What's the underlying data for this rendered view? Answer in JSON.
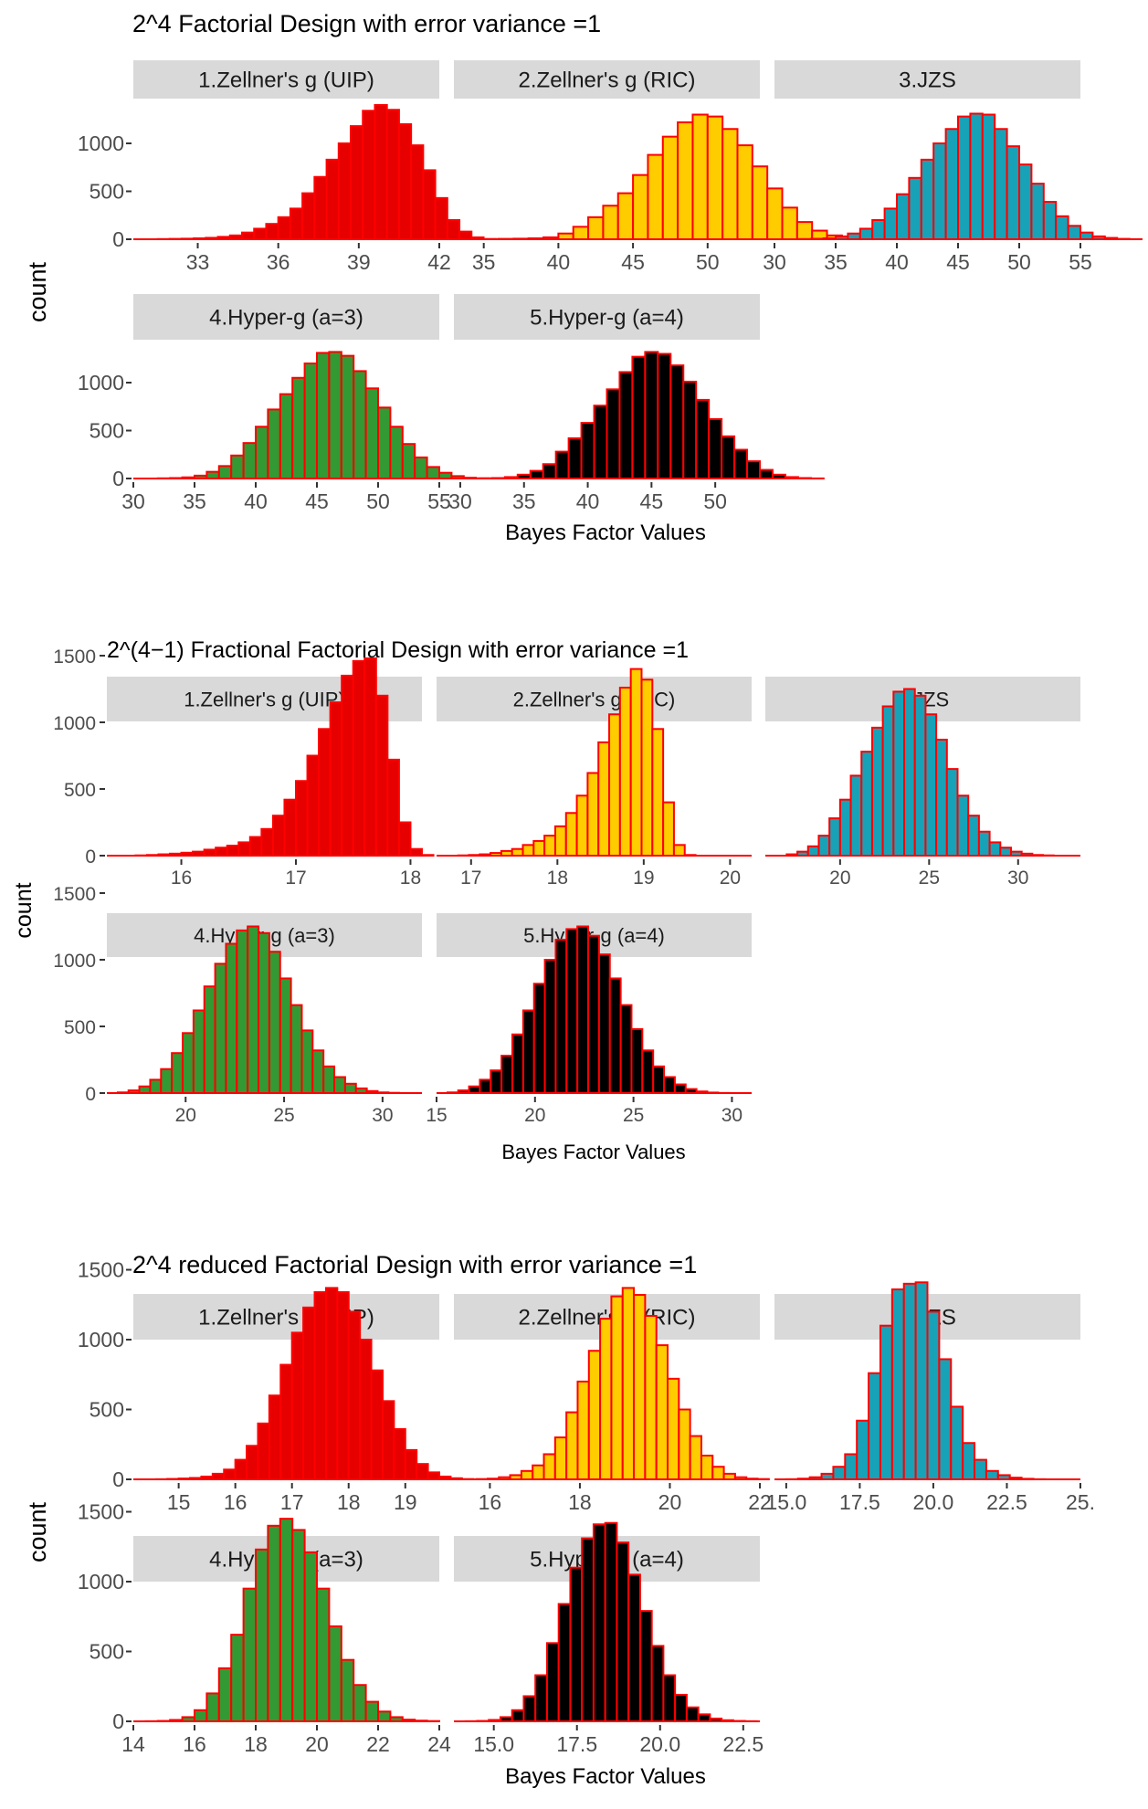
{
  "strip_color": "#d9d9d9",
  "bar_stroke": "#ff0000",
  "axis_color": "#333333",
  "text_color": "#4d4d4d",
  "figures": [
    {
      "title": "2^4 Factorial Design with error variance =1",
      "ylabel": "count",
      "xlabel": "Bayes Factor Values",
      "yticks": [
        0,
        500,
        1000
      ],
      "panels": [
        {
          "strip": "1.Zellner's g (UIP)",
          "fill": "#e60000",
          "xlim": [
            30.6,
            42.0
          ],
          "xticks": [
            33,
            36,
            39,
            42
          ],
          "tick_labels": [
            "33",
            "36",
            "39",
            "42"
          ],
          "start": 30.6,
          "width": 0.45,
          "counts": [
            0,
            0,
            2,
            4,
            6,
            10,
            15,
            25,
            40,
            70,
            110,
            160,
            230,
            320,
            480,
            650,
            830,
            1000,
            1180,
            1340,
            1400,
            1350,
            1200,
            980,
            720,
            430,
            200,
            80,
            20,
            2
          ]
        },
        {
          "strip": "2.Zellner's g (RIC)",
          "fill": "#ffcc00",
          "xlim": [
            33.0,
            53.5
          ],
          "xticks": [
            35,
            40,
            45,
            50
          ],
          "tick_labels": [
            "35",
            "40",
            "45",
            "50"
          ],
          "start": 33.0,
          "width": 1.0,
          "counts": [
            0,
            0,
            2,
            4,
            6,
            10,
            20,
            60,
            130,
            230,
            350,
            480,
            670,
            880,
            1070,
            1220,
            1300,
            1280,
            1150,
            980,
            760,
            530,
            330,
            180,
            90,
            40,
            14,
            5,
            1,
            0
          ]
        },
        {
          "strip": "3.JZS",
          "fill": "#17a2b8",
          "xlim": [
            30.0,
            55.0
          ],
          "xticks": [
            30,
            35,
            40,
            45,
            50,
            55
          ],
          "tick_labels": [
            "30",
            "35",
            "40",
            "45",
            "50",
            "55"
          ],
          "start": 30.0,
          "width": 1.0,
          "counts": [
            0,
            0,
            2,
            5,
            10,
            30,
            60,
            110,
            200,
            320,
            470,
            640,
            830,
            1000,
            1150,
            1280,
            1310,
            1300,
            1150,
            970,
            780,
            580,
            390,
            240,
            140,
            70,
            30,
            14,
            4,
            1
          ]
        }
      ],
      "panels_row2": [
        {
          "strip": "4.Hyper-g (a=3)",
          "fill": "#339933",
          "xlim": [
            30.0,
            55.0
          ],
          "xticks": [
            30,
            35,
            40,
            45,
            50,
            55
          ],
          "tick_labels": [
            "30",
            "35",
            "40",
            "45",
            "50",
            "55"
          ],
          "start": 30.0,
          "width": 1.0,
          "counts": [
            0,
            0,
            2,
            5,
            12,
            30,
            70,
            130,
            240,
            370,
            540,
            720,
            880,
            1050,
            1200,
            1310,
            1320,
            1280,
            1120,
            940,
            740,
            540,
            360,
            220,
            120,
            60,
            25,
            8,
            2,
            1
          ]
        },
        {
          "strip": "5.Hyper-g (a=4)",
          "fill": "#000000",
          "xlim": [
            29.5,
            53.5
          ],
          "xticks": [
            30,
            35,
            40,
            45,
            50
          ],
          "tick_labels": [
            "30",
            "35",
            "40",
            "45",
            "50"
          ],
          "start": 29.5,
          "width": 1.0,
          "counts": [
            0,
            0,
            2,
            5,
            15,
            40,
            80,
            150,
            280,
            420,
            580,
            760,
            930,
            1110,
            1270,
            1320,
            1300,
            1180,
            1010,
            820,
            620,
            440,
            300,
            180,
            90,
            40,
            15,
            5,
            1,
            0
          ]
        }
      ]
    },
    {
      "title": "2^(4−1) Fractional Factorial Design with error variance =1",
      "ylabel": "count",
      "xlabel": "Bayes Factor Values",
      "yticks": [
        0,
        500,
        1000,
        1500
      ],
      "panels": [
        {
          "strip": "1.Zellner's g (UIP)",
          "fill": "#e60000",
          "xlim": [
            15.35,
            18.1
          ],
          "xticks": [
            16,
            17,
            18
          ],
          "tick_labels": [
            "16",
            "17",
            "18"
          ],
          "start": 15.4,
          "width": 0.1,
          "counts": [
            0,
            0,
            2,
            5,
            10,
            15,
            22,
            30,
            45,
            60,
            75,
            100,
            140,
            200,
            300,
            420,
            560,
            750,
            950,
            1150,
            1350,
            1460,
            1480,
            1200,
            720,
            250,
            50,
            5
          ]
        },
        {
          "strip": "2.Zellner's g (RIC)",
          "fill": "#ffcc00",
          "xlim": [
            16.6,
            20.25
          ],
          "xticks": [
            17,
            18,
            19,
            20
          ],
          "tick_labels": [
            "17",
            "18",
            "19",
            "20"
          ],
          "start": 16.6,
          "width": 0.125,
          "counts": [
            0,
            0,
            2,
            5,
            10,
            20,
            35,
            50,
            80,
            110,
            150,
            220,
            320,
            450,
            620,
            850,
            1060,
            1260,
            1400,
            1320,
            950,
            400,
            80,
            5,
            0,
            0,
            0,
            0,
            0
          ]
        },
        {
          "strip": "3.JZS",
          "fill": "#17a2b8",
          "xlim": [
            15.8,
            33.5
          ],
          "xticks": [
            20,
            25,
            30
          ],
          "tick_labels": [
            "20",
            "25",
            "30"
          ],
          "start": 15.8,
          "width": 0.6,
          "counts": [
            0,
            0,
            10,
            30,
            70,
            150,
            280,
            420,
            600,
            780,
            960,
            1120,
            1230,
            1250,
            1200,
            1060,
            870,
            650,
            450,
            300,
            180,
            100,
            60,
            30,
            15,
            5,
            2,
            0,
            0
          ]
        }
      ],
      "panels_row2": [
        {
          "strip": "4.Hyper-g (a=3)",
          "fill": "#339933",
          "xlim": [
            16.0,
            32.0
          ],
          "xticks": [
            20,
            25,
            30
          ],
          "tick_labels": [
            "20",
            "25",
            "30"
          ],
          "start": 16.0,
          "width": 0.55,
          "counts": [
            0,
            5,
            20,
            50,
            100,
            180,
            300,
            450,
            620,
            800,
            970,
            1120,
            1220,
            1250,
            1200,
            1060,
            860,
            660,
            470,
            320,
            200,
            120,
            70,
            35,
            15,
            5,
            2,
            0,
            0
          ]
        },
        {
          "strip": "5.Hyper-g (a=4)",
          "fill": "#000000",
          "xlim": [
            15.0,
            31.0
          ],
          "xticks": [
            15,
            20,
            25,
            30
          ],
          "tick_labels": [
            "15",
            "20",
            "25",
            "30"
          ],
          "start": 15.0,
          "width": 0.55,
          "counts": [
            0,
            5,
            20,
            50,
            100,
            170,
            280,
            440,
            620,
            820,
            1000,
            1150,
            1230,
            1250,
            1180,
            1040,
            860,
            660,
            480,
            320,
            200,
            120,
            65,
            30,
            12,
            4,
            1,
            0,
            0
          ]
        }
      ]
    },
    {
      "title": "2^4 reduced Factorial Design with error variance =1",
      "ylabel": "count",
      "xlabel": "Bayes Factor Values",
      "yticks": [
        0,
        500,
        1000,
        1500
      ],
      "panels": [
        {
          "strip": "1.Zellner's g (UIP)",
          "fill": "#e60000",
          "xlim": [
            14.2,
            19.6
          ],
          "xticks": [
            15,
            16,
            17,
            18,
            19
          ],
          "tick_labels": [
            "15",
            "16",
            "17",
            "18",
            "19"
          ],
          "start": 14.2,
          "width": 0.2,
          "counts": [
            0,
            0,
            1,
            3,
            6,
            10,
            20,
            40,
            70,
            140,
            240,
            400,
            600,
            820,
            1050,
            1230,
            1340,
            1370,
            1340,
            1200,
            1000,
            780,
            560,
            360,
            210,
            110,
            50,
            20,
            8,
            2
          ]
        },
        {
          "strip": "2.Zellner's g (RIC)",
          "fill": "#ffcc00",
          "xlim": [
            15.2,
            22.0
          ],
          "xticks": [
            16,
            18,
            20,
            22
          ],
          "tick_labels": [
            "16",
            "18",
            "20",
            "22"
          ],
          "start": 15.2,
          "width": 0.25,
          "counts": [
            0,
            0,
            2,
            5,
            15,
            30,
            60,
            100,
            180,
            300,
            480,
            700,
            920,
            1150,
            1310,
            1370,
            1320,
            1170,
            960,
            720,
            500,
            310,
            170,
            90,
            40,
            15,
            5,
            2,
            0,
            0
          ]
        },
        {
          "strip": "3.JZS",
          "fill": "#17a2b8",
          "xlim": [
            14.6,
            25.0
          ],
          "xticks": [
            15.0,
            17.5,
            20.0,
            22.5,
            25.0
          ],
          "tick_labels": [
            "15.0",
            "17.5",
            "20.0",
            "22.5",
            "25."
          ],
          "start": 14.6,
          "width": 0.4,
          "counts": [
            0,
            1,
            5,
            15,
            40,
            90,
            180,
            420,
            760,
            1100,
            1360,
            1400,
            1410,
            1200,
            860,
            520,
            260,
            140,
            60,
            30,
            12,
            4,
            1,
            0,
            0,
            0
          ]
        }
      ],
      "panels_row2": [
        {
          "strip": "4.Hyper-g (a=3)",
          "fill": "#339933",
          "xlim": [
            14.0,
            24.0
          ],
          "xticks": [
            14,
            16,
            18,
            20,
            22,
            24
          ],
          "tick_labels": [
            "14",
            "16",
            "18",
            "20",
            "22",
            "24"
          ],
          "start": 14.0,
          "width": 0.4,
          "counts": [
            0,
            1,
            3,
            10,
            30,
            80,
            200,
            380,
            620,
            950,
            1230,
            1400,
            1450,
            1370,
            1210,
            950,
            680,
            440,
            260,
            140,
            70,
            30,
            12,
            5,
            2
          ]
        },
        {
          "strip": "5.Hyper-g (a=4)",
          "fill": "#000000",
          "xlim": [
            13.8,
            23.0
          ],
          "xticks": [
            15.0,
            17.5,
            20.0,
            22.5
          ],
          "tick_labels": [
            "15.0",
            "17.5",
            "20.0",
            "22.5"
          ],
          "start": 13.8,
          "width": 0.35,
          "counts": [
            0,
            1,
            3,
            10,
            30,
            80,
            180,
            330,
            560,
            840,
            1100,
            1310,
            1410,
            1420,
            1280,
            1050,
            790,
            540,
            330,
            190,
            100,
            50,
            20,
            8,
            3,
            1
          ]
        }
      ]
    }
  ]
}
